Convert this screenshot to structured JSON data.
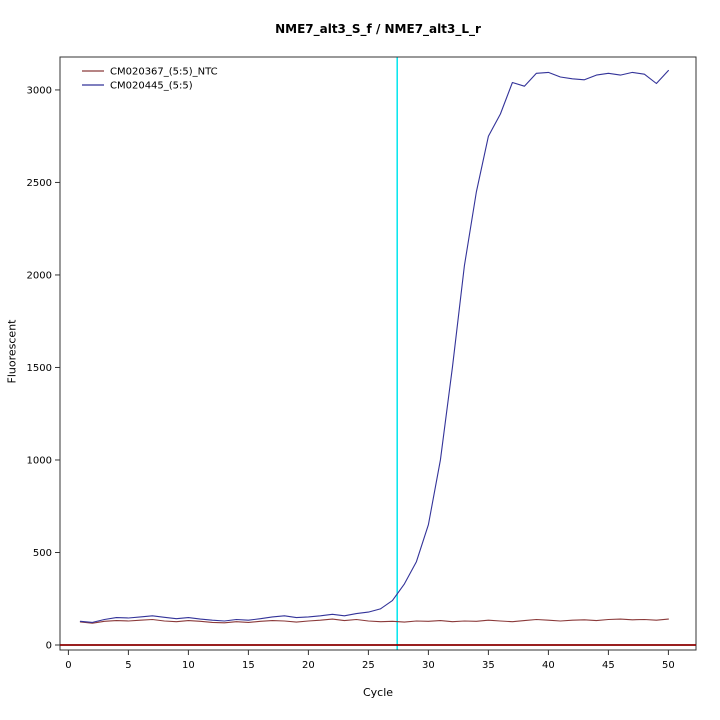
{
  "title": "NME7_alt3_S_f / NME7_alt3_L_r",
  "xlabel": "Cycle",
  "ylabel": "Fluorescent",
  "legend": {
    "position": "top-left",
    "items": [
      {
        "label": "CM020367_(5:5)_NTC",
        "color": "#8b3a3a"
      },
      {
        "label": "CM020445_(5:5)",
        "color": "#333399"
      }
    ]
  },
  "chart_data": {
    "type": "line",
    "title": "NME7_alt3_S_f / NME7_alt3_L_r",
    "xlabel": "Cycle",
    "ylabel": "Fluorescent",
    "xlim": [
      -0.7,
      52.3
    ],
    "ylim": [
      -27,
      3178
    ],
    "x_ticks": [
      0,
      5,
      10,
      15,
      20,
      25,
      30,
      35,
      40,
      45,
      50
    ],
    "y_ticks": [
      0,
      500,
      1000,
      1500,
      2000,
      2500,
      3000
    ],
    "grid": false,
    "x": [
      1,
      2,
      3,
      4,
      5,
      6,
      7,
      8,
      9,
      10,
      11,
      12,
      13,
      14,
      15,
      16,
      17,
      18,
      19,
      20,
      21,
      22,
      23,
      24,
      25,
      26,
      27,
      28,
      29,
      30,
      31,
      32,
      33,
      34,
      35,
      36,
      37,
      38,
      39,
      40,
      41,
      42,
      43,
      44,
      45,
      46,
      47,
      48,
      49,
      50
    ],
    "series": [
      {
        "name": "CM020367_(5:5)_NTC",
        "color": "#8b3a3a",
        "values": [
          125,
          118,
          128,
          132,
          130,
          134,
          138,
          130,
          126,
          132,
          128,
          122,
          120,
          126,
          122,
          128,
          132,
          130,
          124,
          130,
          134,
          140,
          132,
          138,
          130,
          126,
          128,
          124,
          130,
          128,
          132,
          126,
          130,
          128,
          134,
          130,
          126,
          132,
          138,
          134,
          130,
          134,
          136,
          132,
          138,
          140,
          136,
          138,
          134,
          140
        ]
      },
      {
        "name": "CM020445_(5:5)",
        "color": "#333399",
        "values": [
          128,
          122,
          138,
          148,
          146,
          152,
          158,
          150,
          142,
          148,
          140,
          134,
          130,
          138,
          134,
          142,
          152,
          158,
          148,
          152,
          158,
          166,
          158,
          170,
          178,
          195,
          240,
          330,
          450,
          650,
          1000,
          1500,
          2050,
          2450,
          2750,
          2870,
          3040,
          3020,
          3090,
          3095,
          3070,
          3060,
          3055,
          3080,
          3090,
          3080,
          3095,
          3085,
          3035,
          3105
        ]
      }
    ],
    "annotations": {
      "threshold_vline_x": 27.4,
      "threshold_vline_color": "#00e5ee",
      "zero_hline_y": 0,
      "zero_hline_color": "#8b0000"
    }
  }
}
